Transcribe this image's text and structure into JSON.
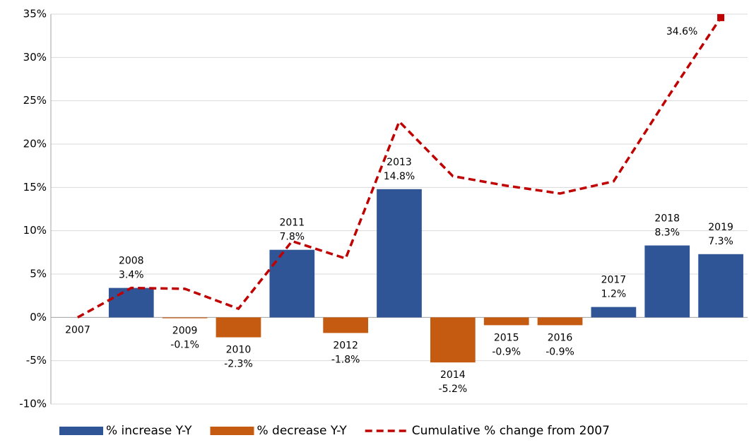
{
  "chart_data": {
    "type": "bar_line",
    "categories": [
      "2007",
      "2008",
      "2009",
      "2010",
      "2011",
      "2012",
      "2013",
      "2014",
      "2015",
      "2016",
      "2017",
      "2018",
      "2019"
    ],
    "series": [
      {
        "name": "% increase Y-Y",
        "type": "bar",
        "color": "#2f5597",
        "values": [
          null,
          3.4,
          null,
          null,
          7.8,
          null,
          14.8,
          null,
          null,
          null,
          1.2,
          8.3,
          7.3
        ],
        "value_labels": [
          null,
          "3.4%",
          null,
          null,
          "7.8%",
          null,
          "14.8%",
          null,
          null,
          null,
          "1.2%",
          "8.3%",
          "7.3%"
        ]
      },
      {
        "name": "% decrease Y-Y",
        "type": "bar",
        "color": "#c55a11",
        "values": [
          null,
          null,
          -0.1,
          -2.3,
          null,
          -1.8,
          null,
          -5.2,
          -0.9,
          -0.9,
          null,
          null,
          null
        ],
        "value_labels": [
          null,
          null,
          "-0.1%",
          "-2.3%",
          null,
          "-1.8%",
          null,
          "-5.2%",
          "-0.9%",
          "-0.9%",
          null,
          null,
          null
        ]
      },
      {
        "name": "Cumulative % change from 2007",
        "type": "line",
        "color": "#c00000",
        "values": [
          0,
          3.4,
          3.3,
          1.0,
          8.8,
          6.8,
          22.6,
          16.3,
          15.2,
          14.3,
          15.7,
          25.3,
          34.6
        ],
        "value_labels": [
          null,
          null,
          null,
          null,
          null,
          null,
          null,
          null,
          null,
          null,
          null,
          null,
          "34.6%"
        ]
      }
    ],
    "ylim": [
      -10,
      35
    ],
    "yticks": [
      {
        "value": -10,
        "label": "-10%"
      },
      {
        "value": -5,
        "label": "-5%"
      },
      {
        "value": 0,
        "label": "0%"
      },
      {
        "value": 5,
        "label": "5%"
      },
      {
        "value": 10,
        "label": "10%"
      },
      {
        "value": 15,
        "label": "15%"
      },
      {
        "value": 20,
        "label": "20%"
      },
      {
        "value": 25,
        "label": "25%"
      },
      {
        "value": 30,
        "label": "30%"
      },
      {
        "value": 35,
        "label": "35%"
      }
    ],
    "grid": true,
    "legend": "bottom"
  }
}
